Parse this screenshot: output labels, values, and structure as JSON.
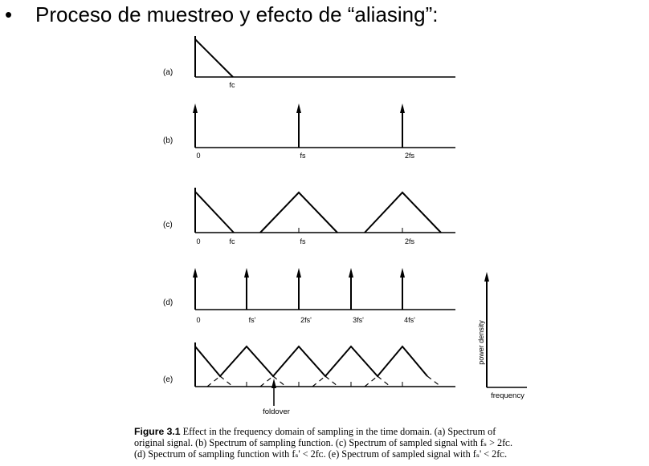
{
  "slide": {
    "bullet": "•",
    "title": "Proceso de muestreo y efecto de “aliasing”:"
  },
  "panels": [
    {
      "label": "(a)",
      "ticks": [
        "fc"
      ]
    },
    {
      "label": "(b)",
      "ticks": [
        "0",
        "fs",
        "2fs"
      ]
    },
    {
      "label": "(c)",
      "ticks": [
        "0",
        "fc",
        "fs",
        "2fs"
      ]
    },
    {
      "label": "(d)",
      "ticks": [
        "0",
        "fs'",
        "2fs'",
        "3fs'",
        "4fs'"
      ]
    },
    {
      "label": "(e)",
      "ticks": [
        "foldover"
      ]
    }
  ],
  "axes_inset": {
    "ylabel": "power density",
    "xlabel": "frequency"
  },
  "caption": {
    "figure_label": "Figure 3.1",
    "line1": "Effect in the frequency domain of sampling in the time domain. (a) Spectrum of",
    "line2": "original signal. (b) Spectrum of sampling function. (c) Spectrum of sampled signal with fₛ > 2fᴄ.",
    "line3": "(d) Spectrum of sampling function with fₛ' < 2fᴄ. (e) Spectrum of sampled signal with fₛ' < 2fᴄ."
  },
  "colors": {
    "ink": "#000000",
    "background": "#ffffff"
  }
}
